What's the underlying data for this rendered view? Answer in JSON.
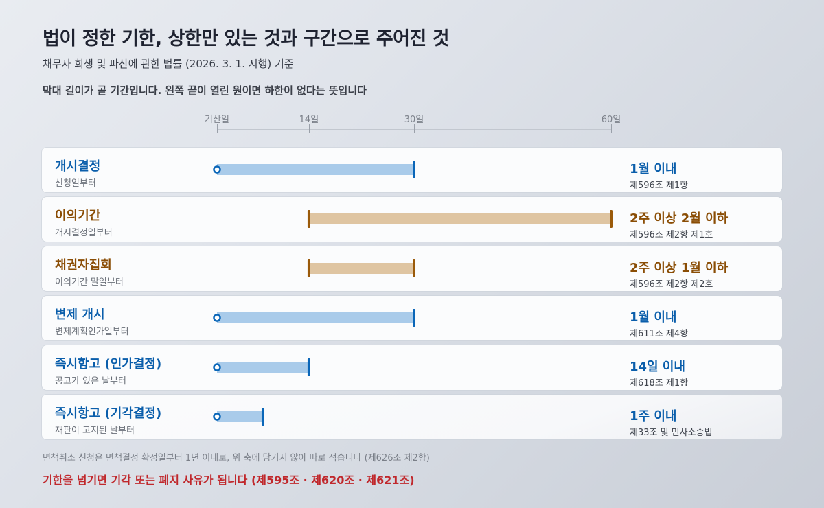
{
  "header": {
    "title": "법이 정한 기한, 상한만 있는 것과 구간으로 주어진 것",
    "subtitle": "채무자 회생 및 파산에 관한 법률 (2026. 3. 1. 시행) 기준",
    "note": "막대 길이가 곧 기간입니다. 왼쪽 끝이 열린 원이면 하한이 없다는 뜻입니다"
  },
  "colors": {
    "blue_bar": "#a9cbea",
    "blue_mark": "#0a66b8",
    "blue_text": "#0a5eab",
    "brown_bar": "#dfc5a2",
    "brown_mark": "#9a5a0a",
    "brown_text": "#8a4d05",
    "warning": "#c0282c"
  },
  "chart_data": {
    "type": "bar",
    "orientation": "horizontal-range",
    "x_unit": "일",
    "xlim": [
      0,
      60
    ],
    "ticks": [
      {
        "value": 0,
        "label": "기산일"
      },
      {
        "value": 14,
        "label": "14일"
      },
      {
        "value": 30,
        "label": "30일"
      },
      {
        "value": 60,
        "label": "60일"
      }
    ],
    "grid": false,
    "rows": [
      {
        "name": "개시결정",
        "start_point": "신청일부터",
        "min": null,
        "max": 30,
        "kind": "upper",
        "range_label": "1월 이내",
        "law": "제596조 제1항"
      },
      {
        "name": "이의기간",
        "start_point": "개시결정일부터",
        "min": 14,
        "max": 60,
        "kind": "interval",
        "range_label": "2주 이상 2월 이하",
        "law": "제596조 제2항 제1호"
      },
      {
        "name": "채권자집회",
        "start_point": "이의기간 말일부터",
        "min": 14,
        "max": 30,
        "kind": "interval",
        "range_label": "2주 이상 1월 이하",
        "law": "제596조 제2항 제2호"
      },
      {
        "name": "변제 개시",
        "start_point": "변제계획인가일부터",
        "min": null,
        "max": 30,
        "kind": "upper",
        "range_label": "1월 이내",
        "law": "제611조 제4항"
      },
      {
        "name": "즉시항고 (인가결정)",
        "start_point": "공고가 있은 날부터",
        "min": null,
        "max": 14,
        "kind": "upper",
        "range_label": "14일 이내",
        "law": "제618조 제1항"
      },
      {
        "name": "즉시항고 (기각결정)",
        "start_point": "재판이 고지된 날부터",
        "min": null,
        "max": 7,
        "kind": "upper",
        "range_label": "1주 이내",
        "law": "제33조 및 민사소송법"
      }
    ]
  },
  "footer": {
    "footnote": "면책취소 신청은 면책결정 확정일부터 1년 이내로, 위 축에 담기지 않아 따로 적습니다 (제626조 제2항)",
    "warning": "기한을 넘기면 기각 또는 폐지 사유가 됩니다 (제595조 · 제620조 · 제621조)"
  }
}
